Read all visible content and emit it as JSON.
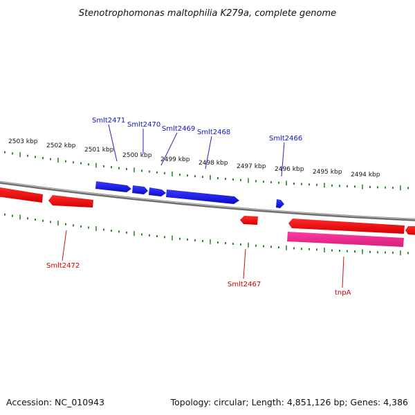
{
  "title": "Stenotrophomonas maltophilia K279a, complete genome",
  "scale_labels": [
    "2503 kbp",
    "2502 kbp",
    "2501 kbp",
    "2500 kbp",
    "2499 kbp",
    "2498 kbp",
    "2497 kbp",
    "2496 kbp",
    "2495 kbp",
    "2494 kbp"
  ],
  "genes_forward": [
    "Smlt2471",
    "Smlt2470",
    "Smlt2469",
    "Smlt2468",
    "Smlt2466"
  ],
  "genes_reverse": [
    "Smlt2472",
    "Smlt2467",
    "tnpA"
  ],
  "colors": {
    "forward_gene": "#1414e0",
    "reverse_gene": "#ee1111",
    "transposase_gene": "#e8258a",
    "backbone": "#8a8a8a",
    "ticks": "#2a8a2a"
  },
  "footer": {
    "accession": "Accession: NC_010943",
    "summary": "Topology: circular; Length: 4,851,126 bp; Genes: 4,386"
  }
}
